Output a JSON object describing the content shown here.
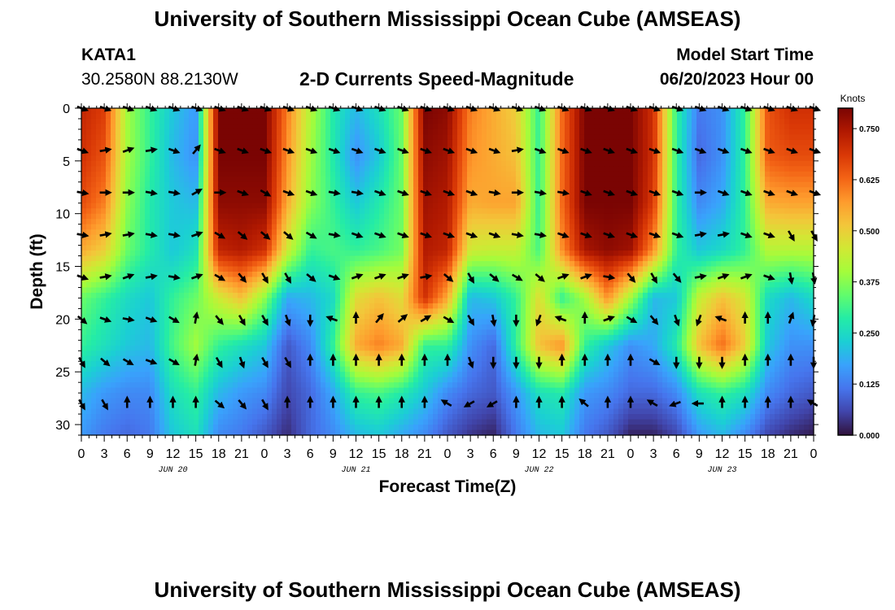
{
  "header": {
    "title": "University of Southern Mississippi Ocean Cube (AMSEAS)",
    "station_id": "KATA1",
    "station_coords": "30.2580N  88.2130W",
    "chart_title": "2-D Currents Speed-Magnitude",
    "model_start_label": "Model Start Time",
    "model_start_value": "06/20/2023 Hour 00"
  },
  "footer": {
    "title": "University of Southern Mississippi Ocean Cube (AMSEAS)"
  },
  "colors": {
    "ramp": [
      "#30123b",
      "#4145ab",
      "#4675ed",
      "#39a2fc",
      "#1bcfd4",
      "#24eca6",
      "#61fc6c",
      "#a4fc3b",
      "#d1e834",
      "#f3c63a",
      "#fe9b2d",
      "#f36315",
      "#d93806",
      "#b11901",
      "#7a0403"
    ]
  },
  "chart_data": {
    "type": "heatmap",
    "title": "2-D Currents Speed-Magnitude",
    "xlabel": "Forecast Time(Z)",
    "ylabel": "Depth (ft)",
    "x_hours_from_start": [
      0,
      96
    ],
    "xlim": [
      0,
      96
    ],
    "ylim": [
      0,
      31
    ],
    "x_tick_labels": [
      "0",
      "3",
      "6",
      "9",
      "12",
      "15",
      "18",
      "21",
      "0",
      "3",
      "6",
      "9",
      "12",
      "15",
      "18",
      "21",
      "0",
      "3",
      "6",
      "9",
      "12",
      "15",
      "18",
      "21",
      "0",
      "3",
      "6",
      "9",
      "12",
      "15",
      "18",
      "21",
      "0"
    ],
    "x_tick_step_hours": 3,
    "date_labels": [
      {
        "label": "JUN 20",
        "hour": 12
      },
      {
        "label": "JUN 21",
        "hour": 36
      },
      {
        "label": "JUN 22",
        "hour": 60
      },
      {
        "label": "JUN 23",
        "hour": 84
      }
    ],
    "y_tick_labels": [
      "0",
      "5",
      "10",
      "15",
      "20",
      "25",
      "30"
    ],
    "y_ticks": [
      0,
      5,
      10,
      15,
      20,
      25,
      30
    ],
    "colorbar": {
      "units": "Knots",
      "range": [
        0,
        0.8
      ],
      "tick_labels": [
        "0.000",
        "0.125",
        "0.250",
        "0.375",
        "0.500",
        "0.625",
        "0.750"
      ],
      "ticks": [
        0,
        0.125,
        0.25,
        0.375,
        0.5,
        0.625,
        0.75
      ]
    },
    "vector_times_hours": [
      0,
      3,
      6,
      9,
      12,
      15,
      18,
      21,
      24,
      27,
      30,
      33,
      36,
      39,
      42,
      45,
      48,
      51,
      54,
      57,
      60,
      63,
      66,
      69,
      72,
      75,
      78,
      81,
      84,
      87,
      90,
      93,
      96
    ],
    "vector_depths_ft": [
      0,
      4,
      8,
      12,
      16,
      20,
      24,
      28
    ],
    "vector_directions_deg": [
      [
        -20,
        -20,
        -20,
        -20,
        -20,
        -20,
        -20,
        -20,
        -20,
        -20,
        -20,
        -20,
        -20,
        -20,
        -20,
        -20,
        -20,
        -20,
        -20,
        -20,
        -20,
        -20,
        -20,
        -20,
        -20,
        -20,
        -20,
        -20,
        -20,
        -20,
        -20,
        -20,
        -20
      ],
      [
        -20,
        10,
        20,
        10,
        -20,
        50,
        -20,
        -20,
        -20,
        -20,
        -20,
        -20,
        -20,
        -20,
        -20,
        -20,
        -20,
        -20,
        -20,
        10,
        -20,
        -20,
        -20,
        -20,
        -20,
        -20,
        -20,
        -20,
        -20,
        -20,
        -20,
        -20,
        -20
      ],
      [
        -10,
        0,
        0,
        -10,
        -10,
        30,
        0,
        -20,
        -30,
        -20,
        -20,
        -10,
        -10,
        -20,
        -20,
        -20,
        -20,
        -20,
        -10,
        0,
        -10,
        -10,
        -20,
        -20,
        -20,
        -20,
        -20,
        0,
        -20,
        -20,
        -20,
        -20,
        -20
      ],
      [
        -10,
        10,
        10,
        -10,
        -10,
        20,
        -30,
        -40,
        -40,
        -40,
        -30,
        -10,
        -20,
        -20,
        -20,
        -20,
        -20,
        -20,
        -20,
        -10,
        -10,
        -20,
        -20,
        -20,
        -20,
        -20,
        -20,
        10,
        10,
        -20,
        -20,
        -60,
        -60
      ],
      [
        -20,
        10,
        20,
        10,
        -10,
        20,
        -30,
        -50,
        -60,
        -60,
        -40,
        -20,
        20,
        20,
        20,
        10,
        -40,
        -60,
        -40,
        -30,
        -40,
        20,
        20,
        -10,
        -50,
        -60,
        -50,
        10,
        20,
        20,
        -20,
        -80,
        -80
      ],
      [
        -40,
        -20,
        -10,
        -20,
        -30,
        80,
        -50,
        -60,
        -60,
        -70,
        -90,
        160,
        90,
        50,
        40,
        30,
        -30,
        -60,
        -80,
        -90,
        -110,
        160,
        90,
        20,
        -30,
        -50,
        -70,
        -110,
        160,
        90,
        90,
        70,
        -100
      ],
      [
        -60,
        -40,
        -30,
        -20,
        -30,
        80,
        -60,
        -70,
        -60,
        -60,
        90,
        90,
        90,
        90,
        90,
        90,
        90,
        -70,
        -90,
        -90,
        -90,
        90,
        90,
        90,
        90,
        -30,
        -90,
        -90,
        -90,
        90,
        90,
        90,
        -90
      ],
      [
        -60,
        -60,
        90,
        90,
        90,
        90,
        -40,
        -50,
        -60,
        90,
        90,
        90,
        90,
        90,
        90,
        90,
        150,
        -150,
        -150,
        90,
        90,
        90,
        140,
        90,
        90,
        150,
        -160,
        180,
        90,
        90,
        90,
        90,
        150
      ]
    ],
    "speed_field_knots": [
      [
        0.72,
        0.68,
        0.4,
        0.3,
        0.22,
        0.16,
        0.8,
        0.8,
        0.8,
        0.6,
        0.42,
        0.28,
        0.2,
        0.26,
        0.35,
        0.8,
        0.78,
        0.6,
        0.55,
        0.5,
        0.3,
        0.62,
        0.8,
        0.8,
        0.8,
        0.7,
        0.3,
        0.12,
        0.15,
        0.3,
        0.65,
        0.7,
        0.7
      ],
      [
        0.7,
        0.65,
        0.4,
        0.3,
        0.2,
        0.15,
        0.8,
        0.8,
        0.8,
        0.58,
        0.4,
        0.28,
        0.15,
        0.22,
        0.35,
        0.78,
        0.76,
        0.58,
        0.55,
        0.52,
        0.3,
        0.62,
        0.8,
        0.8,
        0.8,
        0.7,
        0.3,
        0.1,
        0.15,
        0.3,
        0.64,
        0.66,
        0.66
      ],
      [
        0.66,
        0.6,
        0.38,
        0.28,
        0.22,
        0.2,
        0.78,
        0.78,
        0.78,
        0.55,
        0.38,
        0.3,
        0.22,
        0.28,
        0.35,
        0.76,
        0.74,
        0.55,
        0.56,
        0.56,
        0.3,
        0.62,
        0.8,
        0.8,
        0.8,
        0.68,
        0.3,
        0.14,
        0.18,
        0.3,
        0.55,
        0.56,
        0.56
      ],
      [
        0.55,
        0.5,
        0.35,
        0.28,
        0.22,
        0.26,
        0.72,
        0.74,
        0.7,
        0.45,
        0.3,
        0.32,
        0.3,
        0.32,
        0.36,
        0.74,
        0.72,
        0.45,
        0.44,
        0.44,
        0.32,
        0.58,
        0.75,
        0.78,
        0.76,
        0.58,
        0.3,
        0.22,
        0.25,
        0.3,
        0.42,
        0.42,
        0.42
      ],
      [
        0.35,
        0.3,
        0.25,
        0.22,
        0.3,
        0.35,
        0.45,
        0.52,
        0.38,
        0.18,
        0.2,
        0.25,
        0.48,
        0.52,
        0.48,
        0.7,
        0.55,
        0.2,
        0.22,
        0.3,
        0.48,
        0.3,
        0.4,
        0.58,
        0.4,
        0.2,
        0.22,
        0.44,
        0.52,
        0.46,
        0.25,
        0.2,
        0.25
      ],
      [
        0.3,
        0.26,
        0.22,
        0.2,
        0.32,
        0.4,
        0.3,
        0.26,
        0.22,
        0.08,
        0.14,
        0.3,
        0.55,
        0.6,
        0.55,
        0.3,
        0.3,
        0.15,
        0.1,
        0.3,
        0.52,
        0.58,
        0.3,
        0.22,
        0.15,
        0.18,
        0.28,
        0.52,
        0.62,
        0.5,
        0.22,
        0.15,
        0.15
      ],
      [
        0.2,
        0.16,
        0.14,
        0.14,
        0.26,
        0.3,
        0.2,
        0.16,
        0.14,
        0.06,
        0.1,
        0.18,
        0.3,
        0.32,
        0.28,
        0.22,
        0.14,
        0.1,
        0.08,
        0.16,
        0.26,
        0.28,
        0.16,
        0.14,
        0.1,
        0.1,
        0.14,
        0.26,
        0.3,
        0.26,
        0.14,
        0.1,
        0.08
      ],
      [
        0.16,
        0.12,
        0.1,
        0.12,
        0.22,
        0.26,
        0.14,
        0.12,
        0.08,
        0.03,
        0.1,
        0.14,
        0.2,
        0.22,
        0.18,
        0.14,
        0.08,
        0.04,
        0.02,
        0.12,
        0.2,
        0.22,
        0.12,
        0.08,
        0.02,
        0.02,
        0.06,
        0.16,
        0.2,
        0.14,
        0.06,
        0.03,
        0.01
      ]
    ],
    "speed_field_depths_ft": [
      0,
      4.5,
      9,
      13.5,
      18,
      22.5,
      27,
      31
    ]
  }
}
